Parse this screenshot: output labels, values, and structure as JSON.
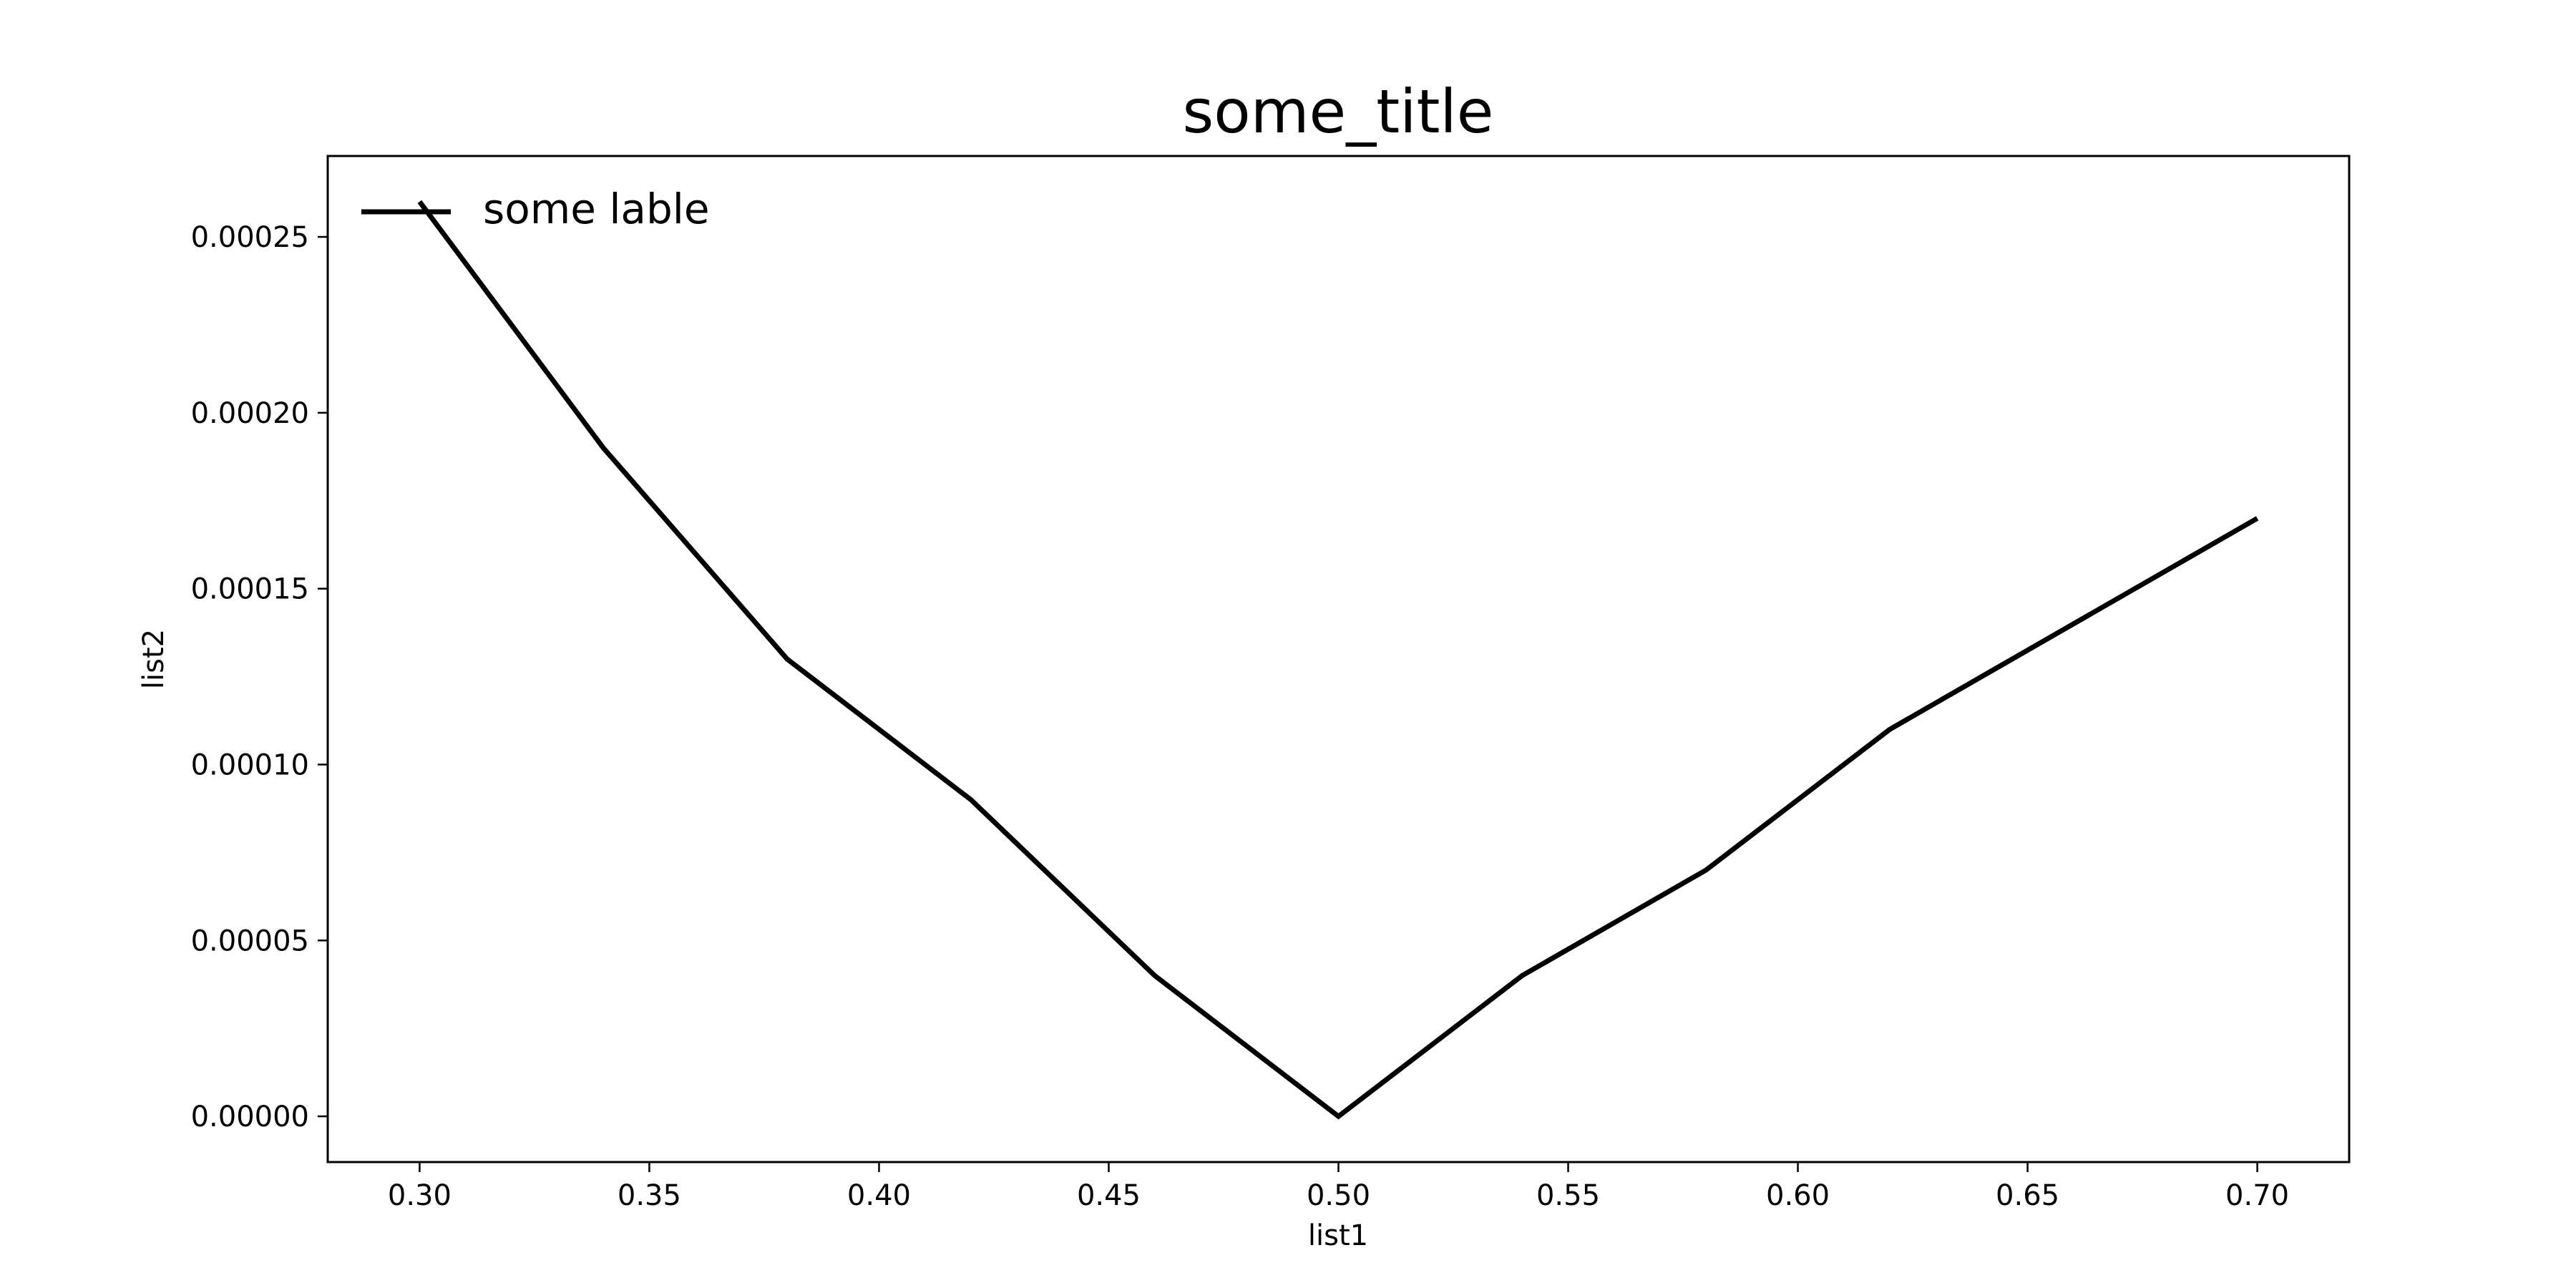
{
  "chart_data": {
    "type": "line",
    "title": "some_title",
    "xlabel": "list1",
    "ylabel": "list2",
    "xlim": [
      0.28,
      0.72
    ],
    "ylim": [
      -1.3e-05,
      0.000273
    ],
    "xticks": [
      0.3,
      0.35,
      0.4,
      0.45,
      0.5,
      0.55,
      0.6,
      0.65,
      0.7
    ],
    "xtick_labels": [
      "0.30",
      "0.35",
      "0.40",
      "0.45",
      "0.50",
      "0.55",
      "0.60",
      "0.65",
      "0.70"
    ],
    "yticks": [
      0.0,
      5e-05,
      0.0001,
      0.00015,
      0.0002,
      0.00025
    ],
    "ytick_labels": [
      "0.00000",
      "0.00005",
      "0.00010",
      "0.00015",
      "0.00020",
      "0.00025"
    ],
    "grid": false,
    "legend_position": "upper-left",
    "series": [
      {
        "name": "some lable",
        "color": "#000000",
        "x": [
          0.3,
          0.34,
          0.38,
          0.42,
          0.46,
          0.5,
          0.54,
          0.58,
          0.62,
          0.66,
          0.7
        ],
        "y": [
          0.00026,
          0.00019,
          0.00013,
          9e-05,
          4e-05,
          0.0,
          4e-05,
          7e-05,
          0.00011,
          0.00014,
          0.00017
        ]
      }
    ]
  }
}
